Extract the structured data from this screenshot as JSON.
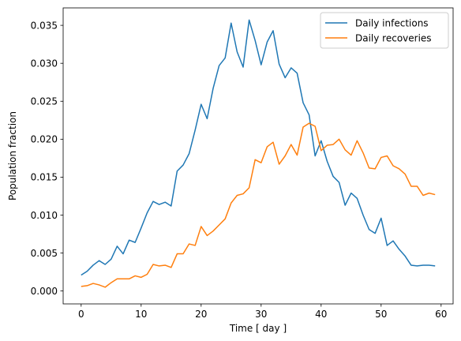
{
  "chart_data": {
    "type": "line",
    "xlabel": "Time [ day ]",
    "ylabel": "Population fraction",
    "xlim": [
      -3,
      62
    ],
    "ylim": [
      -0.0017,
      0.0373
    ],
    "xticks": [
      "0",
      "10",
      "20",
      "30",
      "40",
      "50",
      "60"
    ],
    "yticks": [
      "0.000",
      "0.005",
      "0.010",
      "0.015",
      "0.020",
      "0.025",
      "0.030",
      "0.035"
    ],
    "grid": false,
    "legend": "top-right",
    "x": [
      0,
      1,
      2,
      3,
      4,
      5,
      6,
      7,
      8,
      9,
      10,
      11,
      12,
      13,
      14,
      15,
      16,
      17,
      18,
      19,
      20,
      21,
      22,
      23,
      24,
      25,
      26,
      27,
      28,
      29,
      30,
      31,
      32,
      33,
      34,
      35,
      36,
      37,
      38,
      39,
      40,
      41,
      42,
      43,
      44,
      45,
      46,
      47,
      48,
      49,
      50,
      51,
      52,
      53,
      54,
      55,
      56,
      57,
      58,
      59
    ],
    "series": [
      {
        "name": "Daily infections",
        "color": "#1f77b4",
        "values": [
          0.0021,
          0.0026,
          0.0034,
          0.004,
          0.0035,
          0.0042,
          0.0059,
          0.0049,
          0.0067,
          0.0064,
          0.0083,
          0.0103,
          0.0118,
          0.0114,
          0.0117,
          0.0112,
          0.0158,
          0.0166,
          0.0181,
          0.0212,
          0.0246,
          0.0227,
          0.0267,
          0.0297,
          0.0307,
          0.0353,
          0.0315,
          0.0295,
          0.0357,
          0.033,
          0.0298,
          0.0328,
          0.0343,
          0.0299,
          0.0281,
          0.0294,
          0.0287,
          0.0248,
          0.0232,
          0.0178,
          0.0198,
          0.0171,
          0.0151,
          0.0143,
          0.0113,
          0.0129,
          0.0122,
          0.01,
          0.0081,
          0.0076,
          0.0096,
          0.006,
          0.0066,
          0.0055,
          0.0046,
          0.0034,
          0.0033,
          0.0034,
          0.0034,
          0.0033
        ]
      },
      {
        "name": "Daily recoveries",
        "color": "#ff7f0e",
        "values": [
          0.0006,
          0.0007,
          0.001,
          0.0008,
          0.0005,
          0.0011,
          0.0016,
          0.0016,
          0.0016,
          0.002,
          0.0018,
          0.0022,
          0.0035,
          0.0033,
          0.0034,
          0.0031,
          0.0049,
          0.0049,
          0.0062,
          0.006,
          0.0085,
          0.0073,
          0.0079,
          0.0087,
          0.0095,
          0.0116,
          0.0126,
          0.0128,
          0.0136,
          0.0173,
          0.0169,
          0.019,
          0.0196,
          0.0167,
          0.0178,
          0.0193,
          0.0179,
          0.0216,
          0.0221,
          0.0217,
          0.0185,
          0.0192,
          0.0193,
          0.02,
          0.0186,
          0.0179,
          0.0198,
          0.0182,
          0.0162,
          0.0161,
          0.0176,
          0.0178,
          0.0165,
          0.0161,
          0.0154,
          0.0138,
          0.0138,
          0.0126,
          0.0129,
          0.0127
        ]
      }
    ]
  }
}
